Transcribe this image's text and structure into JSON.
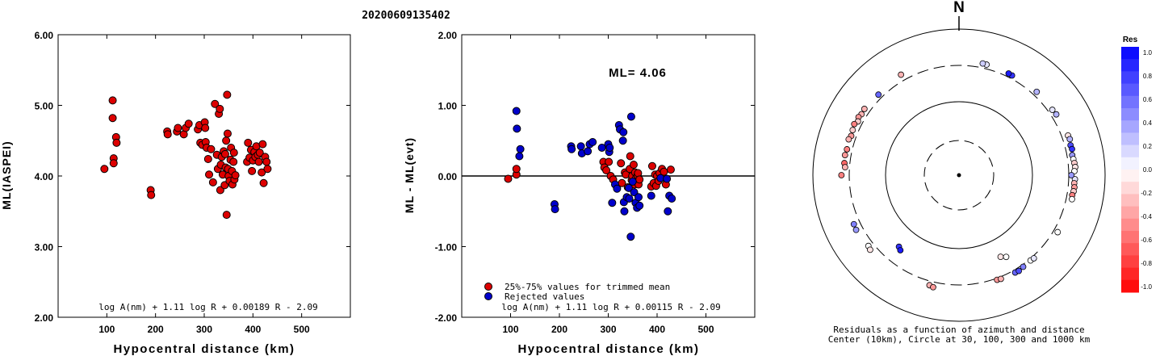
{
  "title": "20200609135402",
  "chart_data": [
    {
      "type": "scatter",
      "ylabel": "ML(IASPEI)",
      "xlabel": "Hypocentral distance (km)",
      "xlim": [
        0,
        600
      ],
      "ylim": [
        2.0,
        6.0
      ],
      "xticks": [
        100,
        200,
        300,
        400,
        500
      ],
      "yticks": [
        "2.00",
        "3.00",
        "4.00",
        "5.00",
        "6.00"
      ],
      "formula": "log A(nm) + 1.11 log R + 0.00189 R - 2.09",
      "series": [
        {
          "color": "#dd0000",
          "points": [
            [
              95,
              4.1
            ],
            [
              112,
              5.07
            ],
            [
              112,
              4.82
            ],
            [
              114,
              4.25
            ],
            [
              114,
              4.18
            ],
            [
              119,
              4.55
            ],
            [
              120,
              4.47
            ],
            [
              190,
              3.8
            ],
            [
              191,
              3.73
            ],
            [
              224,
              4.63
            ],
            [
              225,
              4.59
            ],
            [
              244,
              4.63
            ],
            [
              246,
              4.68
            ],
            [
              258,
              4.59
            ],
            [
              262,
              4.68
            ],
            [
              268,
              4.74
            ],
            [
              287,
              4.66
            ],
            [
              290,
              4.72
            ],
            [
              292,
              4.47
            ],
            [
              296,
              4.44
            ],
            [
              301,
              4.76
            ],
            [
              302,
              4.68
            ],
            [
              303,
              4.48
            ],
            [
              305,
              4.4
            ],
            [
              308,
              4.24
            ],
            [
              310,
              4.02
            ],
            [
              314,
              4.38
            ],
            [
              318,
              3.91
            ],
            [
              322,
              5.02
            ],
            [
              326,
              4.3
            ],
            [
              328,
              4.1
            ],
            [
              330,
              4.88
            ],
            [
              332,
              4.95
            ],
            [
              333,
              3.8
            ],
            [
              334,
              4.16
            ],
            [
              336,
              4.27
            ],
            [
              338,
              4.02
            ],
            [
              340,
              4.35
            ],
            [
              342,
              3.87
            ],
            [
              343,
              4.31
            ],
            [
              344,
              4.12
            ],
            [
              345,
              4.5
            ],
            [
              346,
              3.45
            ],
            [
              347,
              5.15
            ],
            [
              348,
              4.6
            ],
            [
              349,
              4.1
            ],
            [
              350,
              4.0
            ],
            [
              352,
              3.93
            ],
            [
              354,
              4.23
            ],
            [
              355,
              4.4
            ],
            [
              357,
              4.07
            ],
            [
              358,
              3.88
            ],
            [
              360,
              4.2
            ],
            [
              361,
              4.33
            ],
            [
              362,
              3.95
            ],
            [
              364,
              4.01
            ],
            [
              388,
              4.2
            ],
            [
              390,
              4.47
            ],
            [
              393,
              4.26
            ],
            [
              396,
              4.37
            ],
            [
              398,
              4.07
            ],
            [
              400,
              4.22
            ],
            [
              403,
              4.34
            ],
            [
              405,
              4.27
            ],
            [
              407,
              4.42
            ],
            [
              410,
              4.3
            ],
            [
              412,
              4.2
            ],
            [
              414,
              4.33
            ],
            [
              418,
              4.05
            ],
            [
              420,
              4.45
            ],
            [
              422,
              3.9
            ],
            [
              425,
              4.27
            ],
            [
              428,
              4.2
            ],
            [
              430,
              4.1
            ]
          ]
        }
      ]
    },
    {
      "type": "scatter",
      "ylabel": "ML - ML(evt)",
      "xlabel": "Hypocentral distance (km)",
      "xlim": [
        0,
        600
      ],
      "ylim": [
        -2.0,
        2.0
      ],
      "xticks": [
        100,
        200,
        300,
        400,
        500
      ],
      "yticks": [
        "-2.00",
        "-1.00",
        "0.00",
        "1.00",
        "2.00"
      ],
      "annotation": "ML= 4.06",
      "formula": "log A(nm) + 1.11 log R + 0.00115 R - 2.09",
      "legend": [
        {
          "label": "25%-75% values for trimmed mean",
          "color": "#dd0000"
        },
        {
          "label": "Rejected values",
          "color": "#0000cc"
        }
      ],
      "series": [
        {
          "name": "25%-75% values for trimmed mean",
          "color": "#dd0000",
          "points": [
            [
              95,
              -0.04
            ],
            [
              112,
              0.02
            ],
            [
              112,
              0.1
            ],
            [
              290,
              0.2
            ],
            [
              292,
              0.12
            ],
            [
              296,
              0.08
            ],
            [
              301,
              0.2
            ],
            [
              305,
              0.0
            ],
            [
              310,
              -0.05
            ],
            [
              326,
              0.18
            ],
            [
              328,
              -0.1
            ],
            [
              334,
              0.05
            ],
            [
              336,
              0.02
            ],
            [
              340,
              -0.16
            ],
            [
              344,
              0.1
            ],
            [
              345,
              0.28
            ],
            [
              348,
              -0.06
            ],
            [
              349,
              0.0
            ],
            [
              352,
              0.16
            ],
            [
              354,
              -0.12
            ],
            [
              355,
              0.05
            ],
            [
              357,
              -0.03
            ],
            [
              358,
              -0.08
            ],
            [
              360,
              0.01
            ],
            [
              361,
              0.04
            ],
            [
              362,
              -0.12
            ],
            [
              364,
              -0.05
            ],
            [
              388,
              -0.15
            ],
            [
              390,
              0.14
            ],
            [
              393,
              -0.1
            ],
            [
              396,
              0.02
            ],
            [
              398,
              -0.14
            ],
            [
              400,
              0.0
            ],
            [
              403,
              -0.07
            ],
            [
              405,
              0.04
            ],
            [
              410,
              0.1
            ],
            [
              412,
              -0.02
            ],
            [
              414,
              0.06
            ],
            [
              418,
              -0.12
            ],
            [
              428,
              0.09
            ]
          ]
        },
        {
          "name": "Rejected values",
          "color": "#0000cc",
          "points": [
            [
              112,
              0.92
            ],
            [
              113,
              0.67
            ],
            [
              118,
              0.28
            ],
            [
              120,
              0.38
            ],
            [
              190,
              -0.4
            ],
            [
              191,
              -0.47
            ],
            [
              224,
              0.42
            ],
            [
              225,
              0.38
            ],
            [
              244,
              0.42
            ],
            [
              246,
              0.32
            ],
            [
              258,
              0.35
            ],
            [
              262,
              0.45
            ],
            [
              268,
              0.48
            ],
            [
              287,
              0.4
            ],
            [
              300,
              0.45
            ],
            [
              302,
              0.34
            ],
            [
              303,
              0.4
            ],
            [
              308,
              -0.38
            ],
            [
              314,
              -0.12
            ],
            [
              318,
              -0.18
            ],
            [
              322,
              0.72
            ],
            [
              324,
              0.66
            ],
            [
              330,
              0.5
            ],
            [
              331,
              0.62
            ],
            [
              332,
              -0.37
            ],
            [
              333,
              -0.5
            ],
            [
              338,
              -0.3
            ],
            [
              342,
              -0.17
            ],
            [
              343,
              -0.32
            ],
            [
              346,
              -0.86
            ],
            [
              347,
              0.84
            ],
            [
              350,
              -0.08
            ],
            [
              353,
              -0.23
            ],
            [
              356,
              -0.38
            ],
            [
              359,
              -0.45
            ],
            [
              362,
              -0.3
            ],
            [
              364,
              -0.42
            ],
            [
              388,
              -0.28
            ],
            [
              407,
              -0.03
            ],
            [
              420,
              -0.04
            ],
            [
              422,
              -0.5
            ],
            [
              425,
              -0.28
            ],
            [
              430,
              -0.32
            ]
          ]
        }
      ]
    },
    {
      "type": "scatter",
      "polar": true,
      "north_label": "N",
      "caption_line1": "Residuals as a function of azimuth and distance",
      "caption_line2": "Center (10km), Circle at 30, 100, 300 and 1000 km",
      "colorbar_title": "Res",
      "colorbar_ticks": [
        "1.0",
        "0.8",
        "0.6",
        "0.4",
        "0.2",
        "0.0",
        "-0.2",
        "-0.4",
        "-0.6",
        "-0.8",
        "-1.0"
      ],
      "circles_km": [
        30,
        100,
        300,
        1000
      ],
      "stations": [
        {
          "az": 302,
          "dist": 400,
          "res": -0.3
        },
        {
          "az": 300,
          "dist": 420,
          "res": -0.4
        },
        {
          "az": 298,
          "dist": 390,
          "res": -0.2
        },
        {
          "az": 305,
          "dist": 410,
          "res": -0.3
        },
        {
          "az": 296,
          "dist": 430,
          "res": -0.5
        },
        {
          "az": 293,
          "dist": 410,
          "res": -0.2
        },
        {
          "az": 290,
          "dist": 395,
          "res": -0.4
        },
        {
          "az": 288,
          "dist": 420,
          "res": -0.3
        },
        {
          "az": 283,
          "dist": 400,
          "res": -0.5
        },
        {
          "az": 280,
          "dist": 415,
          "res": -0.4
        },
        {
          "az": 276,
          "dist": 405,
          "res": -0.6
        },
        {
          "az": 274,
          "dist": 385,
          "res": -0.3
        },
        {
          "az": 315,
          "dist": 380,
          "res": 0.6
        },
        {
          "az": 270,
          "dist": 450,
          "res": -0.5
        },
        {
          "az": 245,
          "dist": 420,
          "res": 0.5
        },
        {
          "az": 242,
          "dist": 430,
          "res": 0.4
        },
        {
          "az": 232,
          "dist": 400,
          "res": 0.0
        },
        {
          "az": 230,
          "dist": 420,
          "res": -0.1
        },
        {
          "az": 220,
          "dist": 210,
          "res": 0.8
        },
        {
          "az": 218,
          "dist": 220,
          "res": 0.9
        },
        {
          "az": 195,
          "dist": 380,
          "res": -0.3
        },
        {
          "az": 193,
          "dist": 400,
          "res": -0.4
        },
        {
          "az": 160,
          "dist": 330,
          "res": -0.4
        },
        {
          "az": 158,
          "dist": 340,
          "res": -0.3
        },
        {
          "az": 150,
          "dist": 350,
          "res": 0.6
        },
        {
          "az": 148,
          "dist": 360,
          "res": 0.7
        },
        {
          "az": 145,
          "dist": 340,
          "res": 0.5
        },
        {
          "az": 140,
          "dist": 330,
          "res": 0.0
        },
        {
          "az": 138,
          "dist": 340,
          "res": 0.1
        },
        {
          "az": 153,
          "dist": 200,
          "res": -0.1
        },
        {
          "az": 150,
          "dist": 215,
          "res": 0.0
        },
        {
          "az": 120,
          "dist": 380,
          "res": 0.0
        },
        {
          "az": 70,
          "dist": 420,
          "res": -0.1
        },
        {
          "az": 72,
          "dist": 430,
          "res": 0.3
        },
        {
          "az": 75,
          "dist": 410,
          "res": 0.7
        },
        {
          "az": 77,
          "dist": 420,
          "res": 0.8
        },
        {
          "az": 80,
          "dist": 400,
          "res": 0.4
        },
        {
          "az": 82,
          "dist": 410,
          "res": 0.0
        },
        {
          "az": 84,
          "dist": 420,
          "res": -0.2
        },
        {
          "az": 86,
          "dist": 430,
          "res": -0.1
        },
        {
          "az": 88,
          "dist": 410,
          "res": 0.0
        },
        {
          "az": 92,
          "dist": 420,
          "res": 0.1
        },
        {
          "az": 94,
          "dist": 410,
          "res": -0.3
        },
        {
          "az": 96,
          "dist": 420,
          "res": -0.4
        },
        {
          "az": 98,
          "dist": 415,
          "res": -0.2
        },
        {
          "az": 100,
          "dist": 400,
          "res": -0.5
        },
        {
          "az": 102,
          "dist": 410,
          "res": 0.0
        },
        {
          "az": 90,
          "dist": 350,
          "res": 0.4
        },
        {
          "az": 55,
          "dist": 380,
          "res": 0.1
        },
        {
          "az": 58,
          "dist": 395,
          "res": 0.3
        },
        {
          "az": 43,
          "dist": 380,
          "res": 0.3
        },
        {
          "az": 28,
          "dist": 360,
          "res": 0.8
        },
        {
          "az": 26,
          "dist": 365,
          "res": 0.9
        },
        {
          "az": 14,
          "dist": 380,
          "res": 0.1
        },
        {
          "az": 12,
          "dist": 385,
          "res": 0.2
        },
        {
          "az": 330,
          "dist": 420,
          "res": -0.3
        }
      ]
    }
  ]
}
